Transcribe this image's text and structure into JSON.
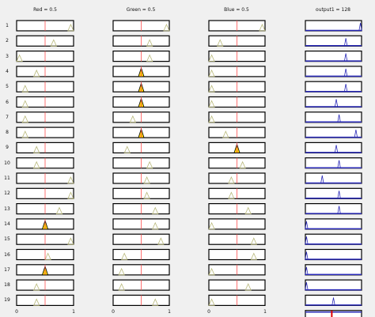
{
  "window": {
    "background": "#f0f0f0"
  },
  "headers": [
    {
      "label": "Red = 0.5"
    },
    {
      "label": "Green = 0.5"
    },
    {
      "label": "Blue = 0.5"
    },
    {
      "label": "output1 = 128"
    }
  ],
  "rules": [
    "1",
    "2",
    "3",
    "4",
    "5",
    "6",
    "7",
    "8",
    "9",
    "10",
    "11",
    "12",
    "13",
    "14",
    "15",
    "16",
    "17",
    "18",
    "19"
  ],
  "axis_ticks": {
    "red": [
      "0",
      "1"
    ],
    "green": [
      "0",
      "1"
    ],
    "blue": [
      "0",
      "1"
    ]
  },
  "colors": {
    "membership_line": "#b8b87a",
    "fired_fill": "#ffd400",
    "input_marker": "#ff5050",
    "output_line": "#2a2ab8",
    "aggregate_marker": "#e00000"
  },
  "inputs": {
    "red": [
      0.95,
      0.65,
      0.05,
      0.35,
      0.15,
      0.15,
      0.15,
      0.15,
      0.35,
      0.35,
      0.95,
      0.95,
      0.75,
      0.5,
      0.95,
      0.55,
      0.5,
      0.35,
      0.35
    ],
    "green": [
      0.95,
      0.65,
      0.65,
      0.5,
      0.5,
      0.5,
      0.35,
      0.5,
      0.25,
      0.65,
      0.6,
      0.6,
      0.75,
      0.75,
      0.85,
      0.2,
      0.15,
      0.15,
      0.75
    ],
    "blue": [
      0.95,
      0.2,
      0.05,
      0.05,
      0.05,
      0.05,
      0.05,
      0.3,
      0.5,
      0.6,
      0.4,
      0.4,
      0.7,
      0.05,
      0.8,
      0.8,
      0.05,
      0.7,
      0.05
    ]
  },
  "fired": {
    "red": [
      14,
      17
    ],
    "green": [
      4,
      5,
      6,
      8
    ],
    "blue": [
      9
    ]
  },
  "outputs": [
    0.98,
    0.72,
    0.72,
    0.72,
    0.72,
    0.55,
    0.6,
    0.9,
    0.55,
    0.6,
    0.3,
    0.6,
    0.6,
    0.02,
    0.02,
    0.02,
    0.02,
    0.02,
    0.5
  ],
  "input_value": 0.5,
  "aggregate_value": 0.47
}
